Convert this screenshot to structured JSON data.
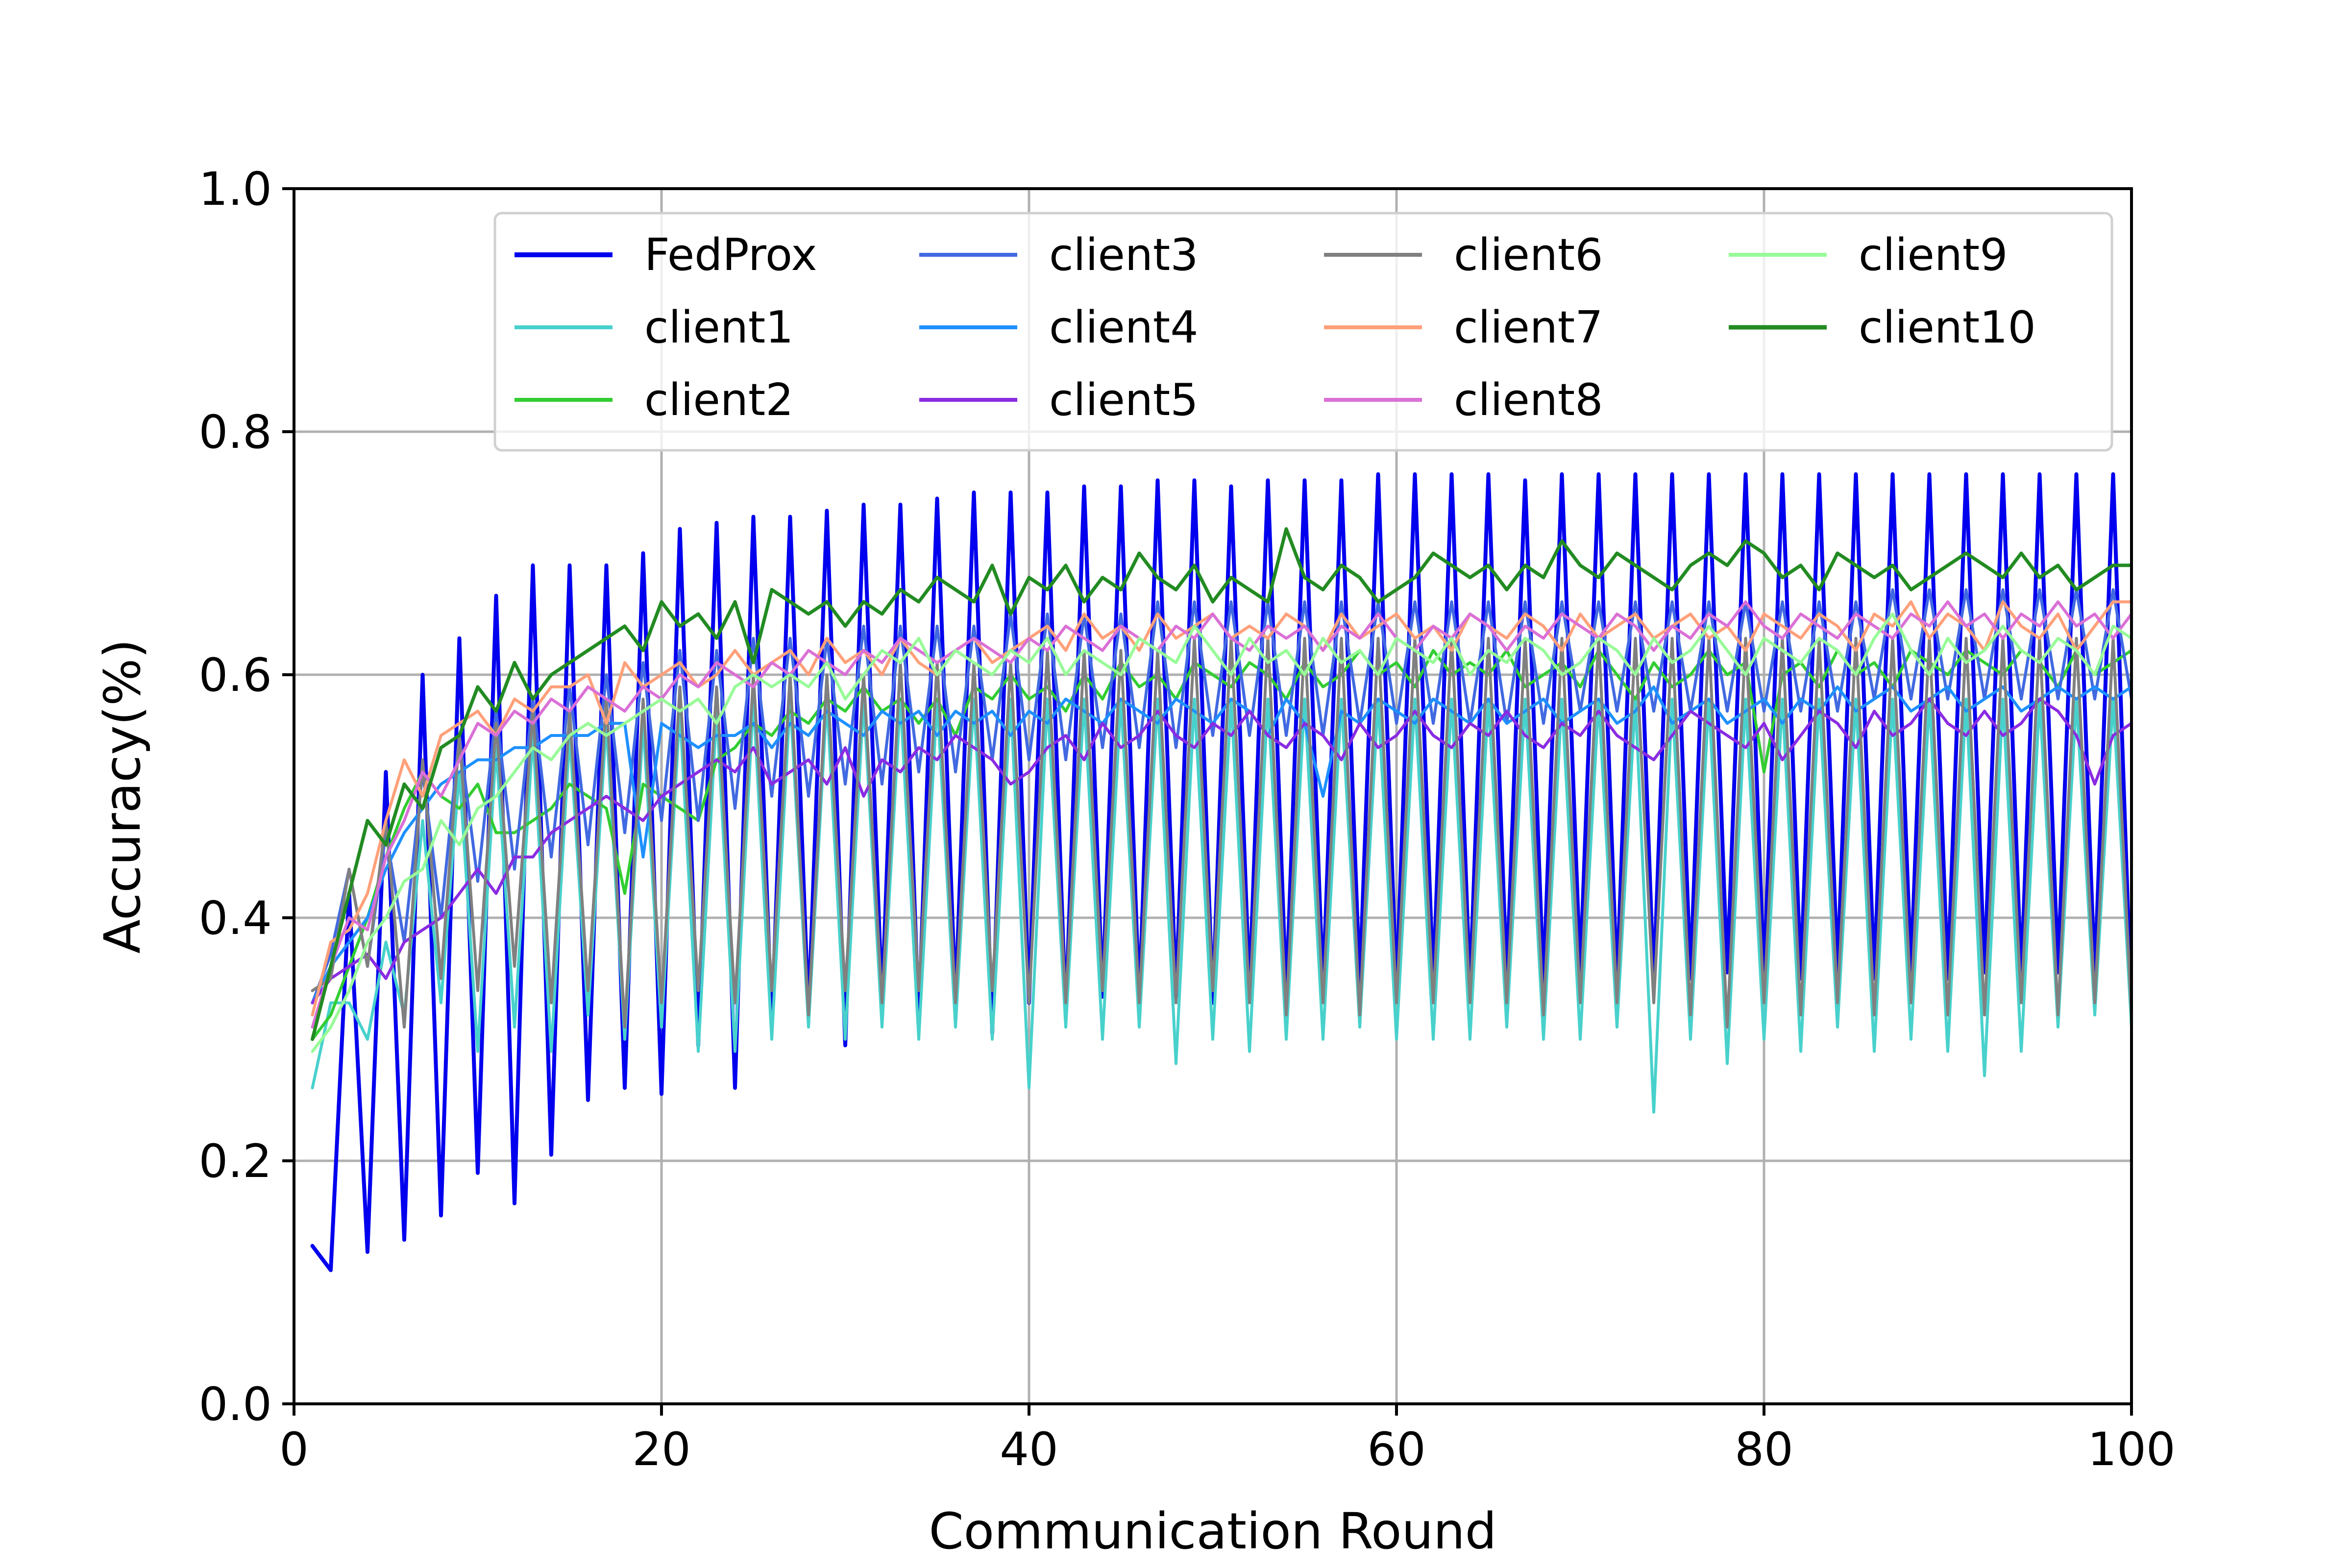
{
  "chart_data": {
    "type": "line",
    "title": "",
    "xlabel": "Communication Round",
    "ylabel": "Accuracy(%)",
    "xlim": [
      0,
      100
    ],
    "ylim": [
      0.0,
      1.0
    ],
    "xticks": [
      "0",
      "20",
      "40",
      "60",
      "80",
      "100"
    ],
    "yticks": [
      "0.0",
      "0.2",
      "0.4",
      "0.6",
      "0.8",
      "1.0"
    ],
    "grid": true,
    "legend_position": "top-right",
    "legend_columns": 4,
    "series": [
      {
        "name": "FedProx",
        "color": "#0000ee",
        "width": 8,
        "values": [
          0.13,
          0.11,
          0.42,
          0.125,
          0.52,
          0.135,
          0.6,
          0.155,
          0.63,
          0.19,
          0.665,
          0.165,
          0.69,
          0.205,
          0.69,
          0.25,
          0.69,
          0.26,
          0.7,
          0.255,
          0.72,
          0.295,
          0.725,
          0.26,
          0.73,
          0.31,
          0.73,
          0.32,
          0.735,
          0.295,
          0.74,
          0.33,
          0.74,
          0.315,
          0.745,
          0.33,
          0.75,
          0.305,
          0.75,
          0.33,
          0.75,
          0.32,
          0.755,
          0.335,
          0.755,
          0.33,
          0.76,
          0.335,
          0.76,
          0.33,
          0.755,
          0.34,
          0.76,
          0.335,
          0.76,
          0.34,
          0.76,
          0.345,
          0.765,
          0.34,
          0.765,
          0.345,
          0.765,
          0.34,
          0.765,
          0.35,
          0.76,
          0.345,
          0.765,
          0.355,
          0.765,
          0.345,
          0.765,
          0.345,
          0.765,
          0.35,
          0.765,
          0.355,
          0.765,
          0.35,
          0.765,
          0.35,
          0.765,
          0.355,
          0.765,
          0.35,
          0.765,
          0.355,
          0.765,
          0.35,
          0.765,
          0.355,
          0.765,
          0.35,
          0.765,
          0.355,
          0.765,
          0.35,
          0.765,
          0.32
        ]
      },
      {
        "name": "client1",
        "color": "#48d1cc",
        "width": 6,
        "values": [
          0.26,
          0.33,
          0.33,
          0.3,
          0.38,
          0.32,
          0.48,
          0.33,
          0.52,
          0.29,
          0.54,
          0.31,
          0.55,
          0.29,
          0.55,
          0.32,
          0.56,
          0.3,
          0.56,
          0.31,
          0.57,
          0.29,
          0.57,
          0.29,
          0.58,
          0.3,
          0.58,
          0.31,
          0.58,
          0.3,
          0.58,
          0.31,
          0.58,
          0.3,
          0.58,
          0.31,
          0.58,
          0.3,
          0.58,
          0.26,
          0.58,
          0.31,
          0.58,
          0.3,
          0.58,
          0.31,
          0.58,
          0.28,
          0.58,
          0.3,
          0.58,
          0.29,
          0.58,
          0.3,
          0.58,
          0.3,
          0.58,
          0.31,
          0.58,
          0.3,
          0.58,
          0.3,
          0.58,
          0.3,
          0.58,
          0.31,
          0.58,
          0.3,
          0.58,
          0.3,
          0.58,
          0.31,
          0.58,
          0.24,
          0.58,
          0.3,
          0.58,
          0.28,
          0.58,
          0.3,
          0.58,
          0.29,
          0.58,
          0.31,
          0.58,
          0.29,
          0.58,
          0.3,
          0.58,
          0.29,
          0.58,
          0.27,
          0.58,
          0.29,
          0.58,
          0.31,
          0.58,
          0.32,
          0.58,
          0.31,
          0.58,
          0.32
        ]
      },
      {
        "name": "client2",
        "color": "#32cd32",
        "width": 6,
        "values": [
          0.3,
          0.32,
          0.36,
          0.4,
          0.45,
          0.49,
          0.52,
          0.5,
          0.49,
          0.51,
          0.47,
          0.47,
          0.48,
          0.49,
          0.51,
          0.5,
          0.49,
          0.42,
          0.51,
          0.5,
          0.49,
          0.48,
          0.53,
          0.54,
          0.56,
          0.55,
          0.57,
          0.56,
          0.58,
          0.57,
          0.59,
          0.57,
          0.58,
          0.56,
          0.58,
          0.55,
          0.59,
          0.58,
          0.6,
          0.58,
          0.59,
          0.57,
          0.6,
          0.58,
          0.61,
          0.59,
          0.6,
          0.58,
          0.61,
          0.6,
          0.59,
          0.61,
          0.6,
          0.58,
          0.61,
          0.59,
          0.6,
          0.62,
          0.6,
          0.61,
          0.59,
          0.62,
          0.6,
          0.61,
          0.6,
          0.62,
          0.59,
          0.6,
          0.61,
          0.59,
          0.62,
          0.6,
          0.58,
          0.61,
          0.59,
          0.6,
          0.62,
          0.6,
          0.61,
          0.52,
          0.6,
          0.61,
          0.59,
          0.62,
          0.6,
          0.61,
          0.59,
          0.62,
          0.61,
          0.6,
          0.62,
          0.61,
          0.6,
          0.62,
          0.61,
          0.59,
          0.62,
          0.6,
          0.61,
          0.62
        ]
      },
      {
        "name": "client3",
        "color": "#4169e1",
        "width": 6,
        "values": [
          0.33,
          0.37,
          0.44,
          0.36,
          0.47,
          0.38,
          0.52,
          0.4,
          0.55,
          0.43,
          0.57,
          0.44,
          0.58,
          0.45,
          0.59,
          0.46,
          0.6,
          0.47,
          0.61,
          0.48,
          0.62,
          0.48,
          0.62,
          0.49,
          0.63,
          0.5,
          0.63,
          0.5,
          0.63,
          0.51,
          0.64,
          0.51,
          0.64,
          0.52,
          0.64,
          0.52,
          0.64,
          0.53,
          0.65,
          0.53,
          0.65,
          0.53,
          0.65,
          0.54,
          0.65,
          0.54,
          0.66,
          0.54,
          0.66,
          0.55,
          0.66,
          0.55,
          0.66,
          0.55,
          0.66,
          0.55,
          0.66,
          0.56,
          0.66,
          0.56,
          0.66,
          0.56,
          0.66,
          0.56,
          0.66,
          0.56,
          0.66,
          0.56,
          0.66,
          0.57,
          0.66,
          0.57,
          0.66,
          0.57,
          0.66,
          0.57,
          0.66,
          0.57,
          0.66,
          0.57,
          0.66,
          0.57,
          0.66,
          0.57,
          0.66,
          0.58,
          0.67,
          0.58,
          0.67,
          0.58,
          0.67,
          0.58,
          0.67,
          0.58,
          0.67,
          0.58,
          0.67,
          0.58,
          0.67,
          0.58
        ]
      },
      {
        "name": "client4",
        "color": "#1e90ff",
        "width": 6,
        "values": [
          0.33,
          0.36,
          0.38,
          0.4,
          0.44,
          0.47,
          0.49,
          0.51,
          0.52,
          0.53,
          0.53,
          0.54,
          0.54,
          0.55,
          0.55,
          0.55,
          0.56,
          0.56,
          0.45,
          0.56,
          0.55,
          0.54,
          0.55,
          0.55,
          0.56,
          0.54,
          0.56,
          0.55,
          0.57,
          0.56,
          0.55,
          0.57,
          0.56,
          0.57,
          0.55,
          0.57,
          0.56,
          0.57,
          0.55,
          0.57,
          0.56,
          0.58,
          0.57,
          0.56,
          0.58,
          0.57,
          0.56,
          0.58,
          0.57,
          0.56,
          0.58,
          0.57,
          0.55,
          0.58,
          0.56,
          0.5,
          0.57,
          0.56,
          0.58,
          0.57,
          0.56,
          0.58,
          0.57,
          0.56,
          0.58,
          0.56,
          0.57,
          0.58,
          0.56,
          0.57,
          0.58,
          0.56,
          0.57,
          0.59,
          0.56,
          0.57,
          0.58,
          0.56,
          0.57,
          0.58,
          0.56,
          0.58,
          0.57,
          0.59,
          0.57,
          0.58,
          0.59,
          0.57,
          0.58,
          0.59,
          0.57,
          0.58,
          0.59,
          0.57,
          0.58,
          0.59,
          0.58,
          0.59,
          0.58,
          0.59
        ]
      },
      {
        "name": "client5",
        "color": "#8a2be2",
        "width": 6,
        "values": [
          0.33,
          0.35,
          0.36,
          0.37,
          0.35,
          0.38,
          0.39,
          0.4,
          0.42,
          0.44,
          0.42,
          0.45,
          0.45,
          0.47,
          0.48,
          0.49,
          0.5,
          0.49,
          0.48,
          0.5,
          0.51,
          0.52,
          0.53,
          0.52,
          0.54,
          0.51,
          0.52,
          0.53,
          0.51,
          0.54,
          0.5,
          0.53,
          0.52,
          0.54,
          0.53,
          0.55,
          0.54,
          0.53,
          0.51,
          0.52,
          0.54,
          0.55,
          0.53,
          0.56,
          0.54,
          0.55,
          0.57,
          0.55,
          0.54,
          0.56,
          0.55,
          0.57,
          0.55,
          0.54,
          0.56,
          0.55,
          0.53,
          0.56,
          0.54,
          0.55,
          0.57,
          0.55,
          0.54,
          0.56,
          0.55,
          0.57,
          0.55,
          0.54,
          0.56,
          0.55,
          0.57,
          0.55,
          0.54,
          0.53,
          0.55,
          0.57,
          0.56,
          0.55,
          0.54,
          0.56,
          0.53,
          0.55,
          0.57,
          0.56,
          0.54,
          0.57,
          0.55,
          0.56,
          0.58,
          0.56,
          0.55,
          0.57,
          0.55,
          0.56,
          0.58,
          0.57,
          0.55,
          0.51,
          0.55,
          0.56
        ]
      },
      {
        "name": "client6",
        "color": "#808080",
        "width": 6,
        "values": [
          0.34,
          0.35,
          0.44,
          0.36,
          0.48,
          0.31,
          0.53,
          0.35,
          0.55,
          0.34,
          0.56,
          0.36,
          0.57,
          0.33,
          0.57,
          0.34,
          0.58,
          0.31,
          0.58,
          0.33,
          0.59,
          0.34,
          0.59,
          0.33,
          0.6,
          0.34,
          0.6,
          0.32,
          0.6,
          0.34,
          0.6,
          0.33,
          0.61,
          0.34,
          0.61,
          0.33,
          0.61,
          0.34,
          0.61,
          0.33,
          0.62,
          0.33,
          0.62,
          0.34,
          0.62,
          0.33,
          0.62,
          0.33,
          0.63,
          0.34,
          0.63,
          0.33,
          0.63,
          0.32,
          0.63,
          0.33,
          0.63,
          0.32,
          0.63,
          0.33,
          0.63,
          0.33,
          0.63,
          0.33,
          0.63,
          0.33,
          0.63,
          0.32,
          0.63,
          0.33,
          0.63,
          0.33,
          0.63,
          0.33,
          0.63,
          0.32,
          0.63,
          0.31,
          0.63,
          0.33,
          0.63,
          0.32,
          0.63,
          0.33,
          0.63,
          0.32,
          0.63,
          0.33,
          0.63,
          0.32,
          0.63,
          0.32,
          0.63,
          0.33,
          0.63,
          0.32,
          0.63,
          0.33,
          0.63,
          0.32
        ]
      },
      {
        "name": "client7",
        "color": "#ffa07a",
        "width": 6,
        "values": [
          0.32,
          0.38,
          0.39,
          0.42,
          0.48,
          0.53,
          0.5,
          0.55,
          0.56,
          0.57,
          0.55,
          0.58,
          0.57,
          0.59,
          0.59,
          0.6,
          0.56,
          0.61,
          0.59,
          0.6,
          0.61,
          0.59,
          0.6,
          0.62,
          0.6,
          0.61,
          0.62,
          0.6,
          0.63,
          0.61,
          0.62,
          0.6,
          0.63,
          0.61,
          0.6,
          0.62,
          0.63,
          0.61,
          0.62,
          0.63,
          0.64,
          0.62,
          0.65,
          0.63,
          0.64,
          0.62,
          0.65,
          0.63,
          0.64,
          0.65,
          0.63,
          0.64,
          0.63,
          0.65,
          0.64,
          0.62,
          0.65,
          0.63,
          0.64,
          0.65,
          0.63,
          0.64,
          0.62,
          0.65,
          0.64,
          0.63,
          0.65,
          0.64,
          0.62,
          0.65,
          0.63,
          0.64,
          0.65,
          0.63,
          0.64,
          0.65,
          0.63,
          0.64,
          0.62,
          0.65,
          0.64,
          0.63,
          0.65,
          0.64,
          0.62,
          0.65,
          0.64,
          0.66,
          0.63,
          0.65,
          0.64,
          0.62,
          0.66,
          0.64,
          0.63,
          0.65,
          0.62,
          0.64,
          0.66,
          0.66
        ]
      },
      {
        "name": "client8",
        "color": "#da70d6",
        "width": 6,
        "values": [
          0.31,
          0.36,
          0.4,
          0.39,
          0.45,
          0.48,
          0.52,
          0.5,
          0.53,
          0.56,
          0.55,
          0.57,
          0.56,
          0.58,
          0.57,
          0.59,
          0.58,
          0.57,
          0.59,
          0.58,
          0.6,
          0.59,
          0.61,
          0.6,
          0.59,
          0.61,
          0.6,
          0.62,
          0.61,
          0.6,
          0.62,
          0.61,
          0.63,
          0.62,
          0.61,
          0.62,
          0.63,
          0.62,
          0.61,
          0.63,
          0.62,
          0.64,
          0.63,
          0.62,
          0.64,
          0.63,
          0.62,
          0.64,
          0.63,
          0.65,
          0.63,
          0.62,
          0.64,
          0.63,
          0.64,
          0.62,
          0.64,
          0.63,
          0.65,
          0.63,
          0.62,
          0.64,
          0.63,
          0.65,
          0.64,
          0.62,
          0.64,
          0.63,
          0.65,
          0.64,
          0.63,
          0.65,
          0.64,
          0.62,
          0.64,
          0.63,
          0.65,
          0.64,
          0.66,
          0.64,
          0.63,
          0.65,
          0.64,
          0.63,
          0.65,
          0.64,
          0.63,
          0.65,
          0.64,
          0.66,
          0.64,
          0.65,
          0.63,
          0.65,
          0.64,
          0.66,
          0.64,
          0.65,
          0.63,
          0.65
        ]
      },
      {
        "name": "client9",
        "color": "#98fb98",
        "width": 6,
        "values": [
          0.29,
          0.31,
          0.34,
          0.38,
          0.4,
          0.43,
          0.44,
          0.48,
          0.46,
          0.49,
          0.5,
          0.52,
          0.54,
          0.53,
          0.55,
          0.56,
          0.55,
          0.56,
          0.57,
          0.58,
          0.57,
          0.58,
          0.56,
          0.59,
          0.6,
          0.59,
          0.6,
          0.59,
          0.61,
          0.58,
          0.6,
          0.62,
          0.61,
          0.63,
          0.6,
          0.62,
          0.61,
          0.6,
          0.62,
          0.61,
          0.63,
          0.6,
          0.62,
          0.61,
          0.6,
          0.63,
          0.62,
          0.61,
          0.64,
          0.62,
          0.6,
          0.63,
          0.61,
          0.62,
          0.6,
          0.63,
          0.61,
          0.62,
          0.6,
          0.63,
          0.62,
          0.61,
          0.63,
          0.6,
          0.62,
          0.61,
          0.63,
          0.62,
          0.6,
          0.61,
          0.63,
          0.62,
          0.6,
          0.63,
          0.61,
          0.62,
          0.64,
          0.62,
          0.6,
          0.63,
          0.62,
          0.61,
          0.63,
          0.62,
          0.6,
          0.63,
          0.65,
          0.62,
          0.6,
          0.63,
          0.61,
          0.62,
          0.64,
          0.62,
          0.61,
          0.63,
          0.62,
          0.6,
          0.64,
          0.63
        ]
      },
      {
        "name": "client10",
        "color": "#228b22",
        "width": 7,
        "values": [
          0.3,
          0.36,
          0.42,
          0.48,
          0.46,
          0.51,
          0.49,
          0.54,
          0.55,
          0.59,
          0.57,
          0.61,
          0.58,
          0.6,
          0.61,
          0.62,
          0.63,
          0.64,
          0.62,
          0.66,
          0.64,
          0.65,
          0.63,
          0.66,
          0.61,
          0.67,
          0.66,
          0.65,
          0.66,
          0.64,
          0.66,
          0.65,
          0.67,
          0.66,
          0.68,
          0.67,
          0.66,
          0.69,
          0.65,
          0.68,
          0.67,
          0.69,
          0.66,
          0.68,
          0.67,
          0.7,
          0.68,
          0.67,
          0.69,
          0.66,
          0.68,
          0.67,
          0.66,
          0.72,
          0.68,
          0.67,
          0.69,
          0.68,
          0.66,
          0.67,
          0.68,
          0.7,
          0.69,
          0.68,
          0.69,
          0.67,
          0.69,
          0.68,
          0.71,
          0.69,
          0.68,
          0.7,
          0.69,
          0.68,
          0.67,
          0.69,
          0.7,
          0.69,
          0.71,
          0.7,
          0.68,
          0.69,
          0.67,
          0.7,
          0.69,
          0.68,
          0.69,
          0.67,
          0.68,
          0.69,
          0.7,
          0.69,
          0.68,
          0.7,
          0.68,
          0.69,
          0.67,
          0.68,
          0.69,
          0.69
        ]
      }
    ]
  }
}
